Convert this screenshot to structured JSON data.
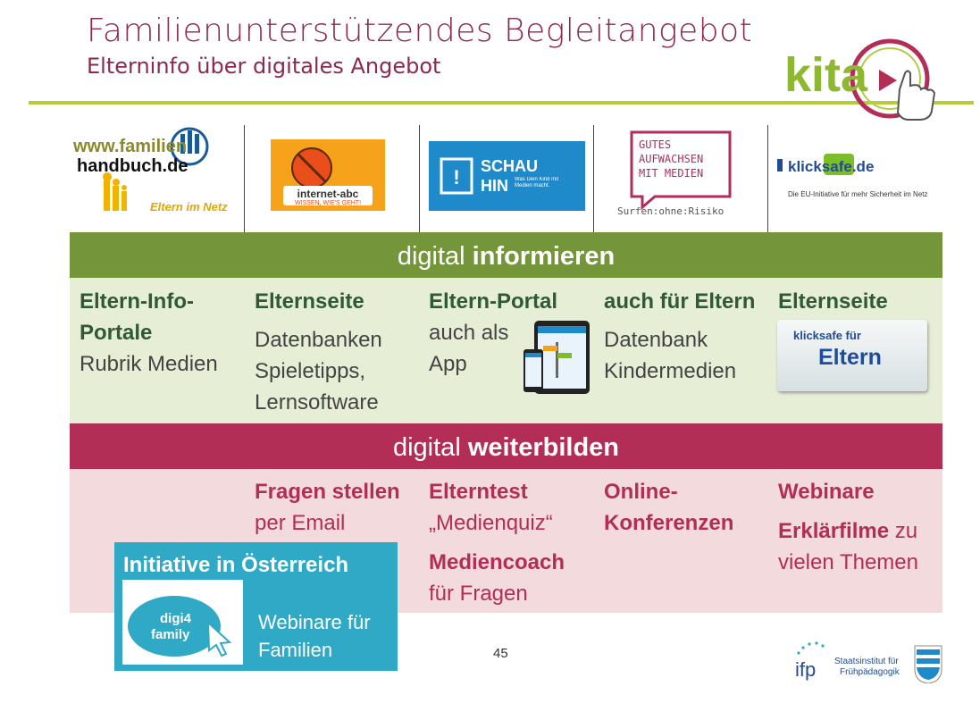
{
  "header": {
    "title": "Familienunterstützendes Begleitangebot",
    "subtitle": "Elterninfo über digitales Angebot",
    "logo_text": "kita"
  },
  "logos": [
    {
      "line1": "www.familien",
      "line2": "handbuch.de",
      "line3": "Eltern im Netz"
    },
    {
      "line1": "internet-abc",
      "line2": "WISSEN, WIE'S GEHT!"
    },
    {
      "line1": "SCHAU",
      "line2": "HIN",
      "line3": "Was Dein Kind mit Medien macht."
    },
    {
      "line1": "GUTES",
      "line2": "AUFWACHSEN",
      "line3": "MIT MEDIEN",
      "line4": "Surfen:ohne:Risiko"
    },
    {
      "line1": "klicksafe.de",
      "line2": "Die EU-Initiative für mehr Sicherheit im Netz"
    }
  ],
  "band_inform": {
    "prefix": "digital ",
    "strong": "informieren"
  },
  "band_educate": {
    "prefix": "digital ",
    "strong": "weiterbilden"
  },
  "inform_cells": [
    {
      "h": "Eltern-Info-Portale",
      "text": "Rubrik Medien"
    },
    {
      "h": "Elternseite",
      "text": "Datenbanken Spieletipps, Lernsoftware"
    },
    {
      "h": "Eltern-Portal",
      "text": "auch als App"
    },
    {
      "h": "auch für Eltern",
      "text": "Datenbank Kindermedien"
    },
    {
      "h": "Elternseite",
      "card_small": "klicksafe für",
      "card_big": "Eltern"
    }
  ],
  "educate_cells": [
    {},
    {
      "h": "Fragen stellen",
      "text": "per Email"
    },
    {
      "h": "Elterntest",
      "text": "„Medienquiz“",
      "h2": "Mediencoach",
      "text2": "für Fragen"
    },
    {
      "h": "Online-Konferenzen"
    },
    {
      "h": "Webinare",
      "h2": "Erklärfilme",
      "text2": " zu vielen Themen"
    }
  ],
  "austria": {
    "title": "Initiative in Österreich",
    "logo_line1": "digi4",
    "logo_line2": "family",
    "text": "Webinare für Familien"
  },
  "footer": {
    "page": "45",
    "ifp": "ifp",
    "institute_line1": "Staatsinstitut für",
    "institute_line2": "Frühpädagogik"
  },
  "colors": {
    "green": "#74953a",
    "red": "#b22e57",
    "accent_line": "#b5cc3e",
    "austria_blue": "#2fa9c5"
  }
}
